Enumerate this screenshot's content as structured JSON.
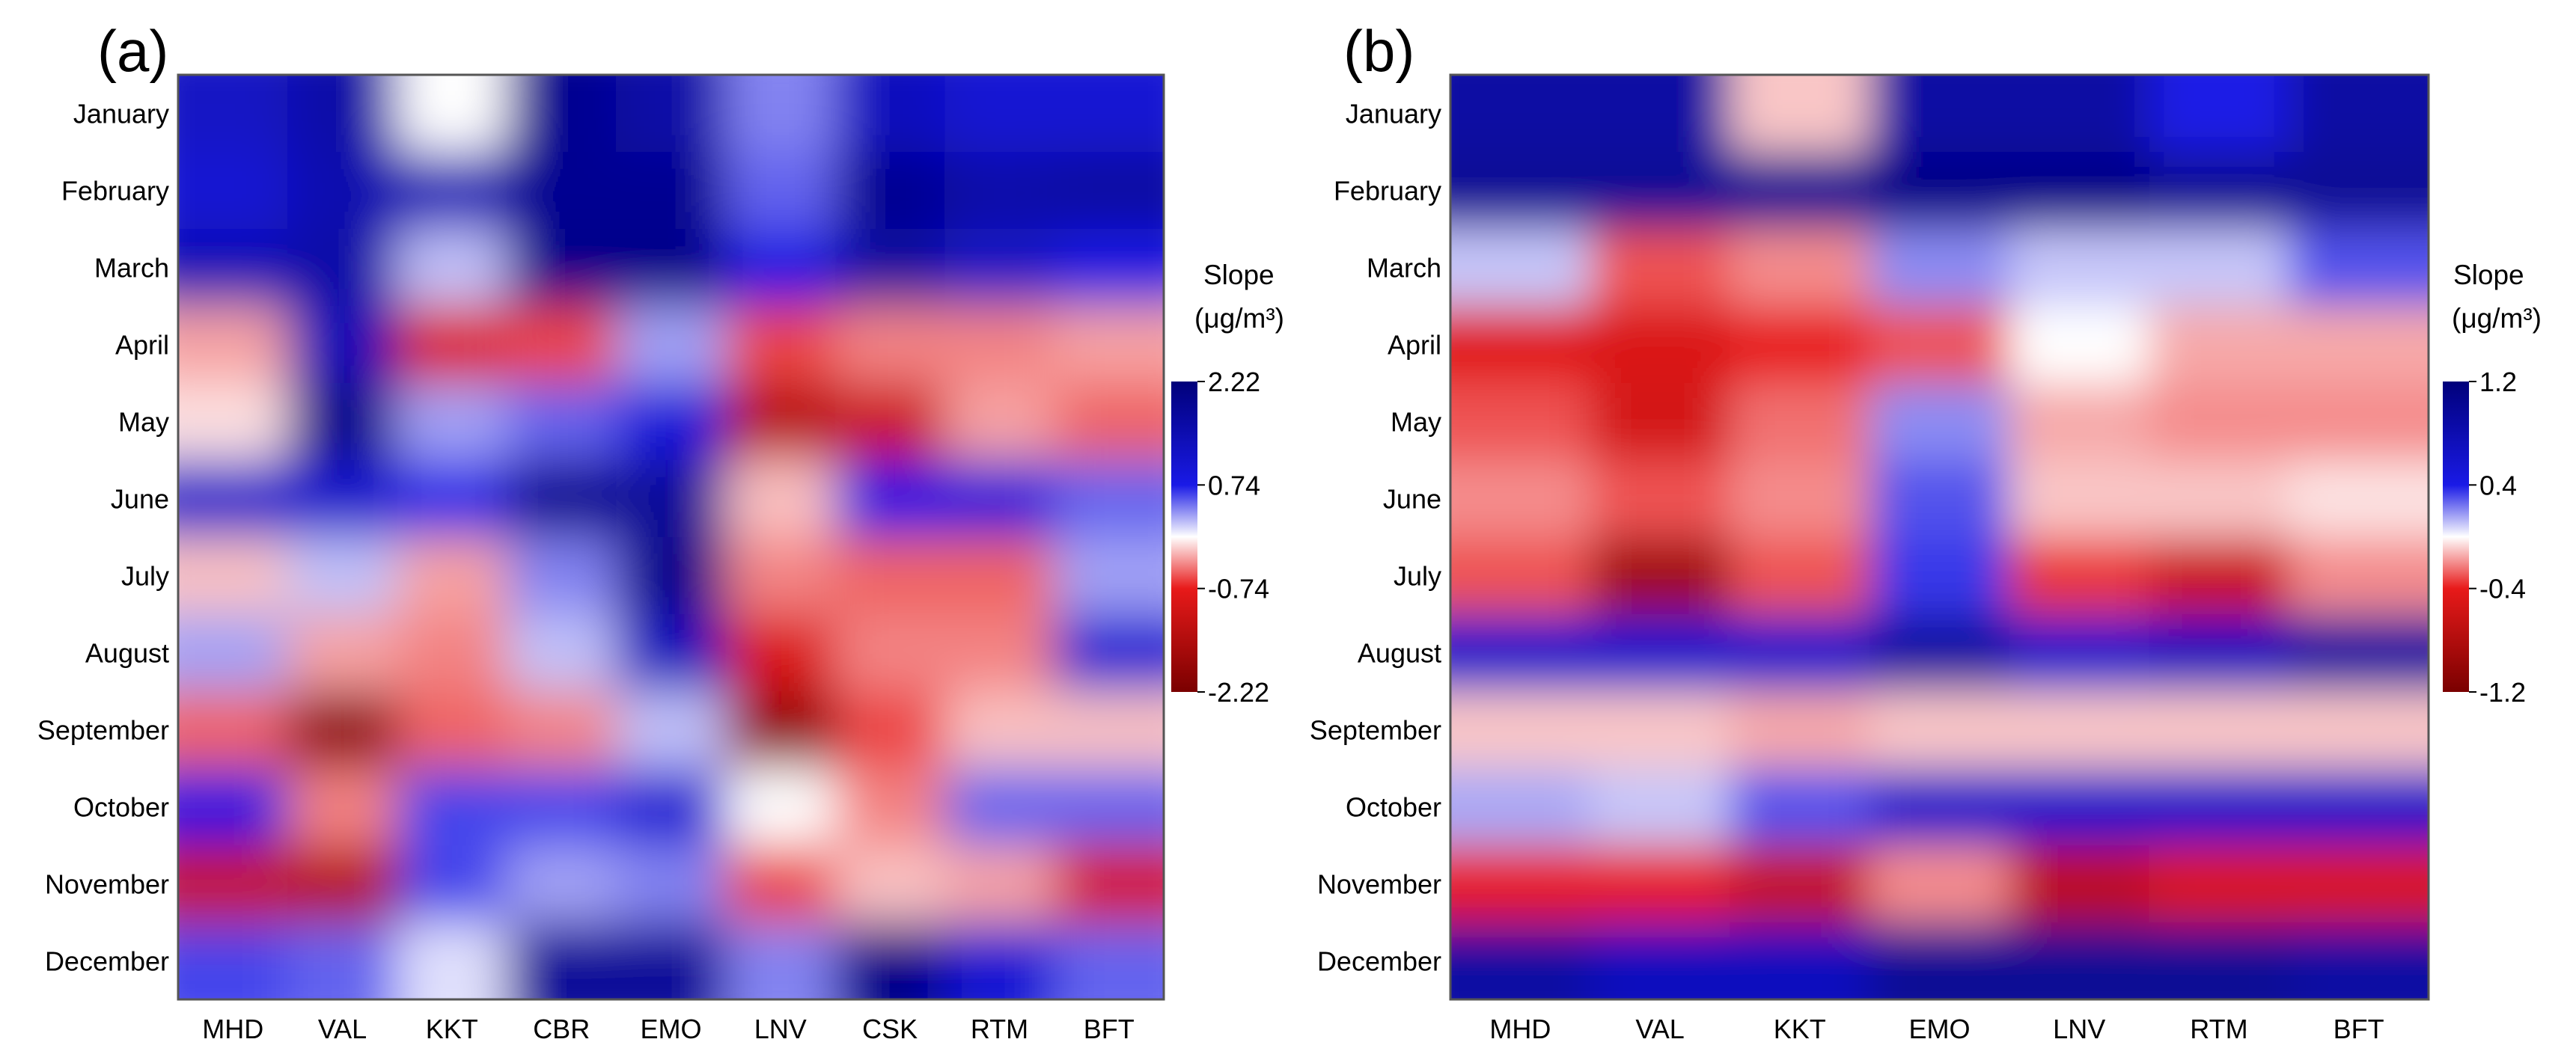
{
  "chart_data": [
    {
      "type": "heatmap",
      "panel_label": "(a)",
      "x_categories": [
        "MHD",
        "VAL",
        "KKT",
        "CBR",
        "EMO",
        "LNV",
        "CSK",
        "RTM",
        "BFT"
      ],
      "y_categories": [
        "January",
        "February",
        "March",
        "April",
        "May",
        "June",
        "July",
        "August",
        "September",
        "October",
        "November",
        "December"
      ],
      "colorbar": {
        "title_line1": "Slope",
        "title_line2": "(μg/m³)",
        "ticks": [
          "2.22",
          "0.74",
          "-0.74",
          "-2.22"
        ],
        "range": [
          -2.22,
          2.22
        ]
      },
      "colors": {
        "negative": "#7a0000",
        "mid_negative": "#e81a1a",
        "center": "#ffffff",
        "mid_positive": "#1a1ae6",
        "positive": "#00007a"
      },
      "values": [
        [
          1.2,
          1.6,
          0.0,
          1.9,
          1.6,
          0.4,
          1.3,
          1.0,
          1.0
        ],
        [
          1.0,
          1.5,
          1.4,
          1.9,
          1.9,
          0.5,
          1.9,
          1.6,
          1.7
        ],
        [
          1.4,
          1.6,
          0.2,
          2.0,
          2.0,
          0.8,
          1.7,
          1.2,
          0.8
        ],
        [
          -0.3,
          1.4,
          -0.9,
          -0.6,
          0.3,
          -0.6,
          -0.4,
          -0.4,
          -0.3
        ],
        [
          -0.1,
          2.0,
          0.3,
          0.5,
          0.9,
          -1.4,
          -1.1,
          -0.3,
          -0.5
        ],
        [
          1.1,
          1.1,
          0.7,
          1.9,
          1.8,
          -0.2,
          0.8,
          0.9,
          0.5
        ],
        [
          -0.2,
          0.2,
          -0.3,
          0.4,
          2.0,
          -0.4,
          -0.5,
          -0.5,
          0.3
        ],
        [
          0.3,
          -0.3,
          -0.4,
          0.2,
          1.3,
          -0.9,
          -0.4,
          -0.4,
          1.0
        ],
        [
          -0.5,
          -1.9,
          -0.5,
          -0.4,
          0.2,
          -1.9,
          -0.6,
          -0.2,
          -0.2
        ],
        [
          0.8,
          -0.4,
          0.6,
          0.6,
          1.0,
          0.0,
          -0.4,
          0.5,
          0.5
        ],
        [
          -1.2,
          -1.4,
          0.6,
          0.3,
          0.4,
          -0.6,
          -0.2,
          -0.3,
          -1.0
        ],
        [
          0.6,
          0.5,
          0.1,
          1.8,
          1.8,
          0.4,
          2.0,
          1.0,
          0.5
        ]
      ]
    },
    {
      "type": "heatmap",
      "panel_label": "(b)",
      "x_categories": [
        "MHD",
        "VAL",
        "KKT",
        "EMO",
        "LNV",
        "RTM",
        "BFT"
      ],
      "y_categories": [
        "January",
        "February",
        "March",
        "April",
        "May",
        "June",
        "July",
        "August",
        "September",
        "October",
        "November",
        "December"
      ],
      "colorbar": {
        "title_line1": "Slope",
        "title_line2": "(μg/m³)",
        "ticks": [
          "1.2",
          "0.4",
          "-0.4",
          "-1.2"
        ],
        "range": [
          -1.2,
          1.2
        ]
      },
      "colors": {
        "negative": "#7a0000",
        "mid_negative": "#e81a1a",
        "center": "#ffffff",
        "mid_positive": "#1a1ae6",
        "positive": "#00007a"
      },
      "values": [
        [
          0.9,
          0.9,
          -0.1,
          0.9,
          0.9,
          0.4,
          0.9
        ],
        [
          1.0,
          1.0,
          1.0,
          1.1,
          1.1,
          1.0,
          1.0
        ],
        [
          0.1,
          -0.3,
          -0.2,
          0.2,
          0.1,
          0.1,
          0.3
        ],
        [
          -0.45,
          -0.5,
          -0.4,
          -0.3,
          0.0,
          -0.15,
          -0.15
        ],
        [
          -0.3,
          -0.55,
          -0.25,
          0.2,
          -0.15,
          -0.2,
          -0.2
        ],
        [
          -0.2,
          -0.3,
          -0.2,
          0.3,
          -0.1,
          -0.1,
          -0.05
        ],
        [
          -0.3,
          -0.9,
          -0.3,
          0.35,
          -0.35,
          -0.6,
          -0.2
        ],
        [
          0.6,
          0.6,
          0.6,
          0.9,
          0.6,
          0.7,
          0.9
        ],
        [
          -0.1,
          -0.1,
          -0.15,
          -0.1,
          -0.1,
          -0.1,
          -0.1
        ],
        [
          0.15,
          0.1,
          0.3,
          0.6,
          0.6,
          0.6,
          0.6
        ],
        [
          -0.4,
          -0.4,
          -0.65,
          -0.2,
          -0.7,
          -0.5,
          -0.5
        ],
        [
          0.9,
          0.7,
          0.7,
          1.0,
          1.0,
          1.0,
          0.9
        ]
      ]
    }
  ]
}
